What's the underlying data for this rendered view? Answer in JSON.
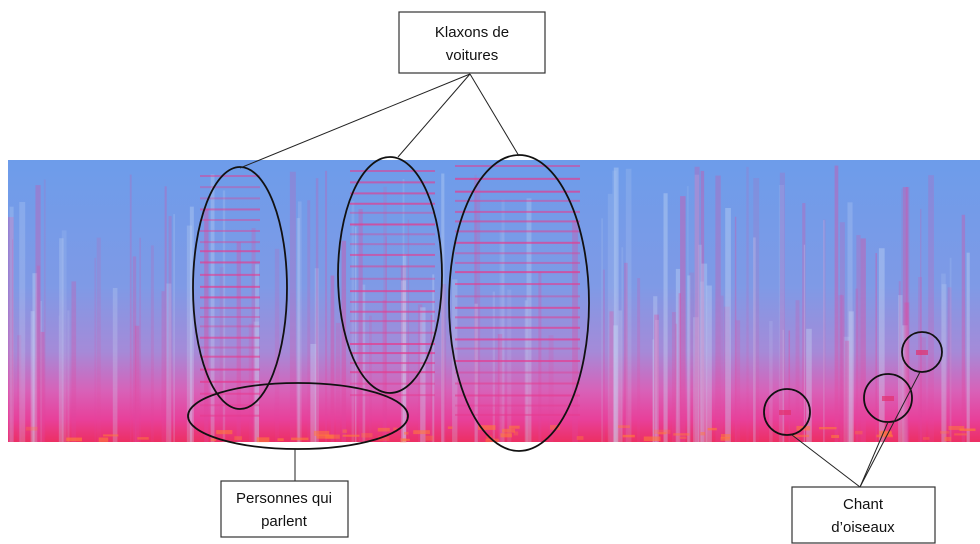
{
  "annotations": [
    {
      "label_lines": [
        "Klaxons de",
        "voitures"
      ]
    },
    {
      "label_lines": [
        "Personnes qui",
        "parlent"
      ]
    },
    {
      "label_lines": [
        "Chant",
        "d’oiseaux"
      ]
    }
  ]
}
